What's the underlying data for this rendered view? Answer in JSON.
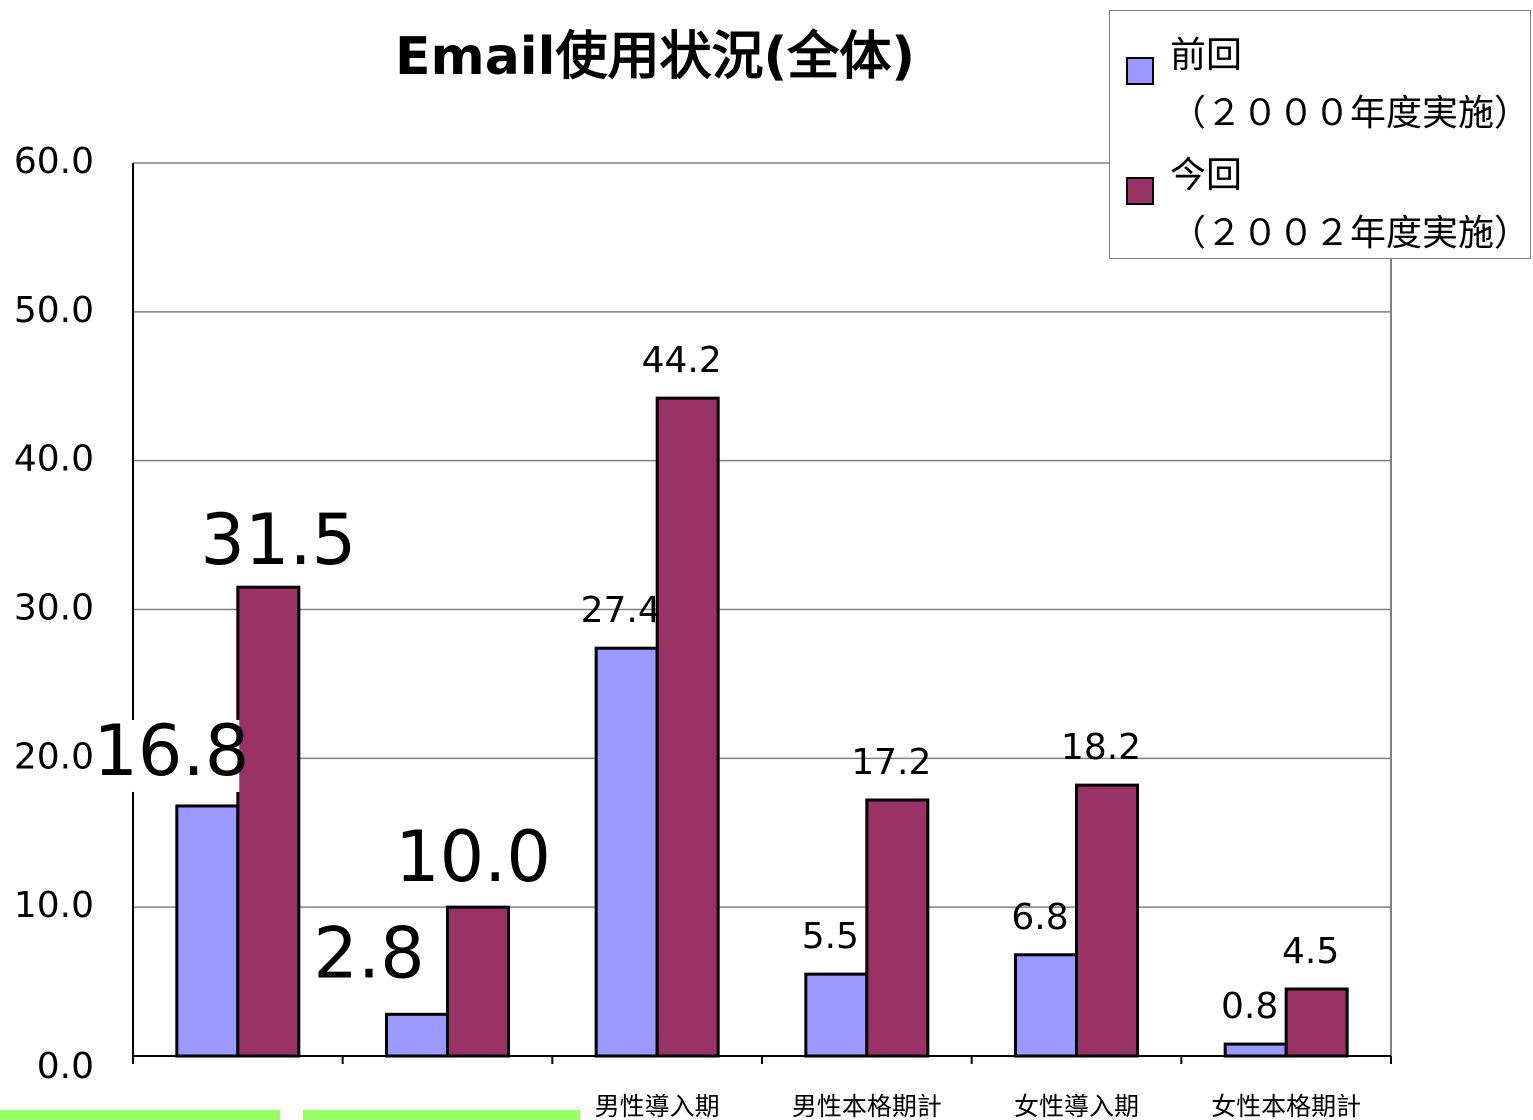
{
  "chart_data": {
    "type": "bar",
    "title": "Email使用状況(全体)",
    "categories": [
      null,
      null,
      "男性導入期",
      "男性本格期計",
      "女性導入期",
      "女性本格期計"
    ],
    "series": [
      {
        "name": "前回\n（２０００年度実施）",
        "color": "#9999ff",
        "values": [
          16.8,
          2.8,
          27.4,
          5.5,
          6.8,
          0.8
        ],
        "value_labels": [
          "16.8",
          "2.8",
          "27.4",
          "5.5",
          "6.8",
          "0.8"
        ]
      },
      {
        "name": "今回\n（２００２年度実施）",
        "color": "#993366",
        "values": [
          31.5,
          10.0,
          44.2,
          17.2,
          18.2,
          4.5
        ],
        "value_labels": [
          "31.5",
          "10.0",
          "44.2",
          "17.2",
          "18.2",
          "4.5"
        ]
      }
    ],
    "ylim": [
      0,
      60
    ],
    "yticks": [
      {
        "value": 0,
        "label": "0.0"
      },
      {
        "value": 10,
        "label": "10.0"
      },
      {
        "value": 20,
        "label": "20.0"
      },
      {
        "value": 30,
        "label": "30.0"
      },
      {
        "value": 40,
        "label": "40.0"
      },
      {
        "value": 50,
        "label": "50.0"
      },
      {
        "value": 60,
        "label": "60.0"
      }
    ],
    "grid": true,
    "legend": "top-right"
  }
}
